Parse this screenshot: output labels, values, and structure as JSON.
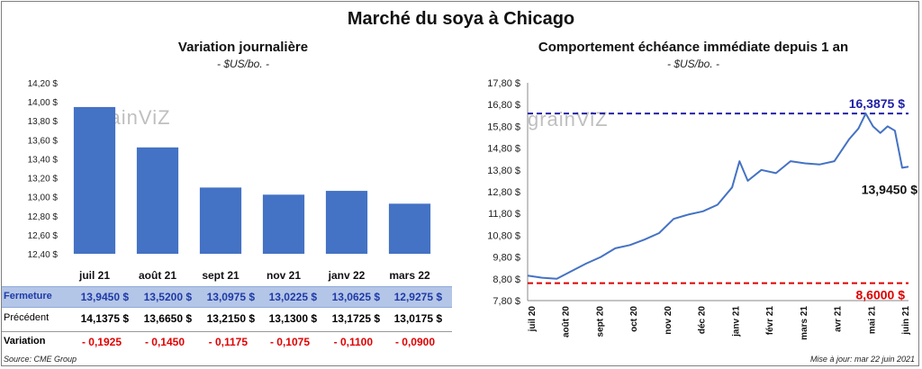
{
  "title": "Marché du soya à Chicago",
  "source": "Source: CME Group",
  "updated": "Mise à jour: mar 22 juin 2021",
  "watermark": "grainViZ",
  "colors": {
    "bar": "#4472c4",
    "line": "#4472c4",
    "high": "#2020a8",
    "low": "#e00000",
    "variation": "#e00000"
  },
  "chart_data": [
    {
      "type": "bar",
      "title": "Variation journalière",
      "subtitle": "- $US/bo. -",
      "categories": [
        "juil 21",
        "août 21",
        "sept 21",
        "nov 21",
        "janv 22",
        "mars 22"
      ],
      "values": [
        13.945,
        13.52,
        13.0975,
        13.0225,
        13.0625,
        12.9275
      ],
      "ylim": [
        12.4,
        14.2
      ],
      "yticks": [
        "12,40 $",
        "12,60 $",
        "12,80 $",
        "13,00 $",
        "13,20 $",
        "13,40 $",
        "13,60 $",
        "13,80 $",
        "14,00 $",
        "14,20 $"
      ],
      "grid": false
    },
    {
      "type": "line",
      "title": "Comportement échéance immédiate depuis 1 an",
      "subtitle": "- $US/bo. -",
      "ylim": [
        7.8,
        17.8
      ],
      "yticks": [
        "7,80 $",
        "8,80 $",
        "9,80 $",
        "10,80 $",
        "11,80 $",
        "12,80 $",
        "13,80 $",
        "14,80 $",
        "15,80 $",
        "16,80 $",
        "17,80 $"
      ],
      "xticks": [
        "juil 20",
        "août 20",
        "sept 20",
        "oct 20",
        "nov 20",
        "déc 20",
        "janv 21",
        "févr 21",
        "mars 21",
        "avr 21",
        "mai 21",
        "juin 21"
      ],
      "x": [
        "2020-06-22",
        "2020-07-06",
        "2020-07-20",
        "2020-08-03",
        "2020-08-17",
        "2020-08-31",
        "2020-09-14",
        "2020-09-28",
        "2020-10-12",
        "2020-10-26",
        "2020-11-09",
        "2020-11-23",
        "2020-12-07",
        "2020-12-21",
        "2021-01-04",
        "2021-01-11",
        "2021-01-19",
        "2021-02-01",
        "2021-02-15",
        "2021-03-01",
        "2021-03-15",
        "2021-03-29",
        "2021-04-12",
        "2021-04-26",
        "2021-05-05",
        "2021-05-12",
        "2021-05-19",
        "2021-05-26",
        "2021-06-02",
        "2021-06-09",
        "2021-06-16",
        "2021-06-22"
      ],
      "y": [
        8.95,
        8.85,
        8.8,
        9.15,
        9.5,
        9.8,
        10.2,
        10.35,
        10.6,
        10.9,
        11.55,
        11.75,
        11.9,
        12.2,
        13.0,
        14.2,
        13.3,
        13.8,
        13.65,
        14.2,
        14.1,
        14.05,
        14.2,
        15.2,
        15.7,
        16.39,
        15.8,
        15.5,
        15.8,
        15.6,
        13.9,
        13.945
      ],
      "high": {
        "value": 16.3875,
        "label": "16,3875 $"
      },
      "low": {
        "value": 8.6,
        "label": "8,6000 $"
      },
      "last_label": "13,9450 $",
      "grid": false
    }
  ],
  "table": {
    "rows": [
      {
        "label": "Fermeture",
        "values": [
          "13,9450  $",
          "13,5200  $",
          "13,0975  $",
          "13,0225  $",
          "13,0625  $",
          "12,9275  $"
        ]
      },
      {
        "label": "Précédent",
        "values": [
          "14,1375  $",
          "13,6650  $",
          "13,2150  $",
          "13,1300  $",
          "13,1725  $",
          "13,0175  $"
        ]
      },
      {
        "label": "Variation",
        "values": [
          "- 0,1925",
          "- 0,1450",
          "- 0,1175",
          "- 0,1075",
          "- 0,1100",
          "- 0,0900"
        ]
      }
    ]
  }
}
